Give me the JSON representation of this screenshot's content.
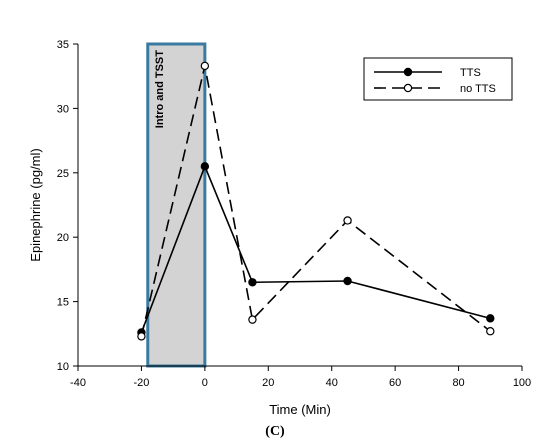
{
  "panel_label": "(C)",
  "chart_data": {
    "type": "line",
    "title": "",
    "xlabel": "Time (Min)",
    "ylabel": "Epinephrine (pg/ml)",
    "xlim": [
      -40,
      100
    ],
    "ylim": [
      10,
      35
    ],
    "xticks": [
      -40,
      -20,
      0,
      20,
      40,
      60,
      80,
      100
    ],
    "yticks": [
      10,
      15,
      20,
      25,
      30,
      35
    ],
    "grid": false,
    "legend_position": "top-right",
    "shaded_region": {
      "x": [
        -18,
        0
      ],
      "label": "Intro and TSST",
      "fill": "#d3d3d3",
      "stroke": "#3a7aa0"
    },
    "series": [
      {
        "name": "TTS",
        "marker": "filled-circle",
        "line": "solid",
        "color": "#000000",
        "x": [
          -20,
          0,
          15,
          45,
          90
        ],
        "y": [
          12.6,
          25.5,
          16.5,
          16.6,
          13.7
        ]
      },
      {
        "name": "no TTS",
        "marker": "open-circle",
        "line": "dashed",
        "color": "#000000",
        "x": [
          -20,
          0,
          15,
          45,
          90
        ],
        "y": [
          12.3,
          33.3,
          13.6,
          21.3,
          12.7
        ]
      }
    ]
  }
}
